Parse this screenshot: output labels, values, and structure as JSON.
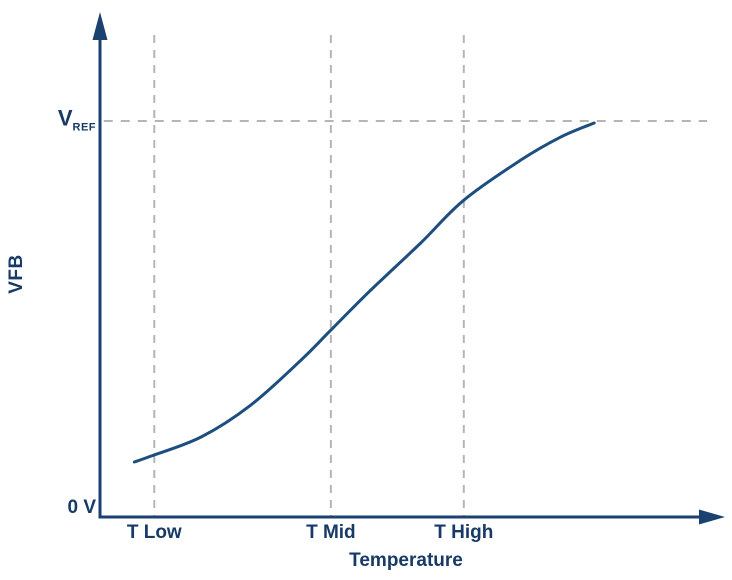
{
  "figure": {
    "background": "#ffffff",
    "text_color": "#173a67",
    "axis_color": "#1a4170",
    "curve_color": "#1d4e80",
    "grid_color": "#b5b5b5"
  },
  "chart_data": {
    "type": "line",
    "title": "",
    "xlabel": "Temperature",
    "ylabel": "VFB",
    "y_origin_label": "0 V",
    "vref_label": {
      "main": "V",
      "sub": "REF"
    },
    "x_ticks": [
      {
        "label": "T Low",
        "t": 0.087
      },
      {
        "label": "T Mid",
        "t": 0.37
      },
      {
        "label": "T High",
        "t": 0.583
      }
    ],
    "y_range": [
      "0 V",
      "VREF"
    ],
    "grid": "dashed vertical lines at x ticks, dashed horizontal line at VREF",
    "legend": "none",
    "vref_line": {
      "v": 1,
      "t_start": 0.006,
      "t_end": 0.973
    },
    "series": [
      {
        "name": "VFB vs Temperature",
        "units": "t = fraction of x-axis span, v = fraction of VREF",
        "points": [
          [
            0.055,
            0.139
          ],
          [
            0.082,
            0.154
          ],
          [
            0.162,
            0.202
          ],
          [
            0.242,
            0.283
          ],
          [
            0.322,
            0.396
          ],
          [
            0.37,
            0.472
          ],
          [
            0.434,
            0.573
          ],
          [
            0.514,
            0.692
          ],
          [
            0.583,
            0.8
          ],
          [
            0.675,
            0.902
          ],
          [
            0.739,
            0.96
          ],
          [
            0.792,
            0.995
          ]
        ]
      }
    ]
  }
}
